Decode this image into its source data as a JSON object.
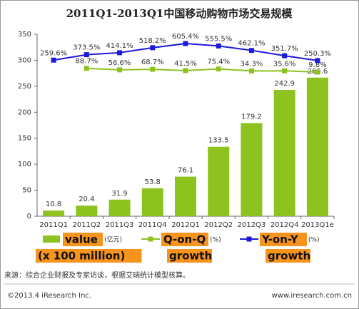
{
  "chart_data": {
    "type": "bar",
    "title": "2011Q1-2013Q1中国移动购物市场交易规模",
    "categories": [
      "2011Q1",
      "2011Q2",
      "2011Q3",
      "2011Q4",
      "2012Q1",
      "2012Q2",
      "2012Q3",
      "2012Q4",
      "2013Q1e"
    ],
    "ylim": [
      0,
      350
    ],
    "yticks": [
      0,
      50,
      100,
      150,
      200,
      250,
      300,
      350
    ],
    "y2lim": [
      -3000,
      800
    ],
    "series": [
      {
        "name": "value",
        "unit": "(亿元)",
        "note": "(x 100 million)",
        "type": "bar",
        "color": "#8dc21f",
        "values": [
          10.8,
          20.4,
          31.9,
          53.8,
          76.1,
          133.5,
          179.2,
          242.9,
          266.6
        ]
      },
      {
        "name": "Q-on-Q",
        "unit": "(%)",
        "note": "growth",
        "type": "line",
        "axis": "y2",
        "color": "#8dc21f",
        "label_color": "#444444",
        "values": [
          null,
          88.7,
          56.6,
          68.7,
          41.5,
          75.4,
          34.3,
          35.6,
          9.8
        ],
        "value_labels": [
          null,
          "88.7%",
          "56.6%",
          "68.7%",
          "41.5%",
          "75.4%",
          "34.3%",
          "35.6%",
          "9.8%"
        ]
      },
      {
        "name": "Y-on-Y",
        "unit": "(%)",
        "note": "growth",
        "type": "line",
        "axis": "y2",
        "color": "#1a1adb",
        "label_color": "#1a1adb",
        "values": [
          259.6,
          373.5,
          414.1,
          518.2,
          605.4,
          555.5,
          462.1,
          351.7,
          250.3
        ],
        "value_labels": [
          "259.6%",
          "373.5%",
          "414.1%",
          "518.2%",
          "605.4%",
          "555.5%",
          "462.1%",
          "351.7%",
          "250.3%"
        ]
      }
    ],
    "source": "来源：综合企业财报及专家访谈，根据艾瑞统计模型核算。",
    "copyright": "©2013.4 iResearch Inc.",
    "website": "www.iresearch.com.cn"
  }
}
